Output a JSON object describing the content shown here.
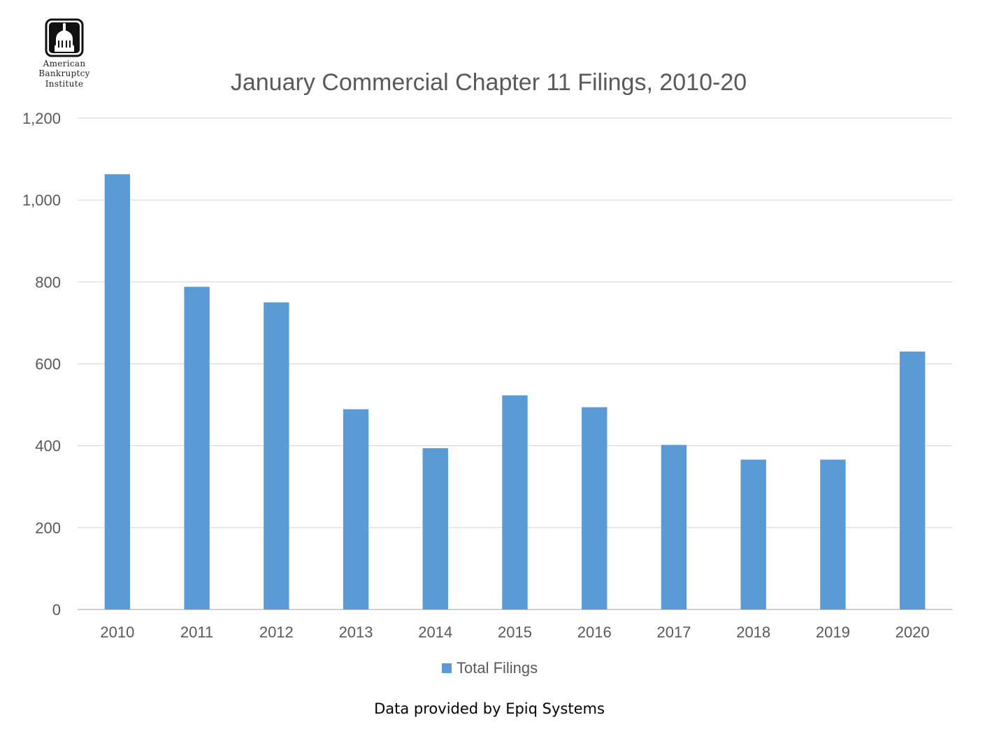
{
  "logo": {
    "line1": "American",
    "line2": "Bankruptcy",
    "line3": "Institute"
  },
  "footer": "Data provided by Epiq Systems",
  "chart_data": {
    "type": "bar",
    "title": "January Commercial Chapter 11 Filings, 2010-20",
    "xlabel": "",
    "ylabel": "",
    "categories": [
      "2010",
      "2011",
      "2012",
      "2013",
      "2014",
      "2015",
      "2016",
      "2017",
      "2018",
      "2019",
      "2020"
    ],
    "series": [
      {
        "name": "Total Filings",
        "values": [
          1063,
          788,
          750,
          489,
          394,
          523,
          494,
          402,
          366,
          366,
          630
        ],
        "color": "#5b9bd5"
      }
    ],
    "ylim": [
      0,
      1200
    ],
    "yticks": [
      0,
      200,
      400,
      600,
      800,
      1000,
      1200
    ],
    "ytick_labels": [
      "0",
      "200",
      "400",
      "600",
      "800",
      "1,000",
      "1,200"
    ],
    "grid": true,
    "legend": "bottom-center"
  }
}
